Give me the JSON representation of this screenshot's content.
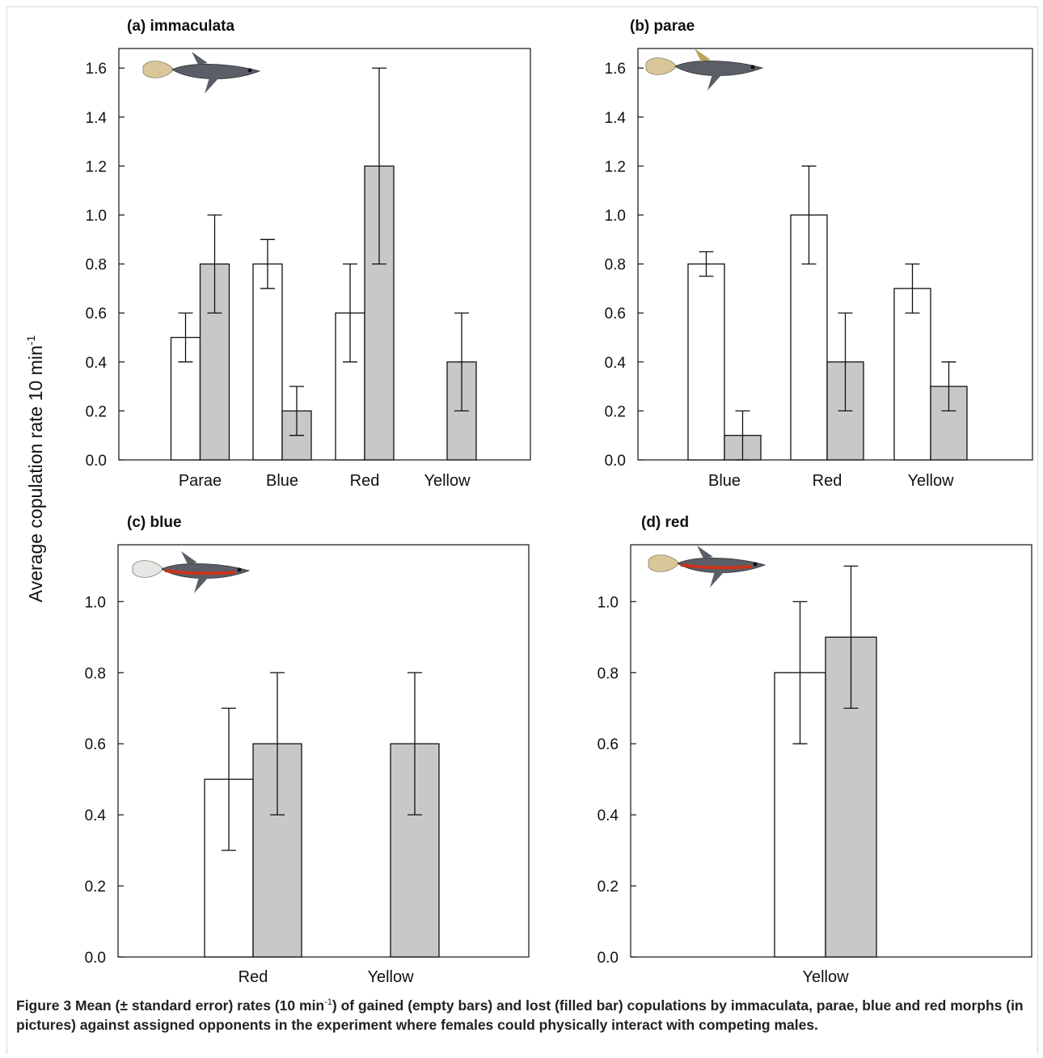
{
  "figure": {
    "ylabel": "Average copulation rate 10 min",
    "ylabel_sup": "-1",
    "caption_lead": "Figure 3",
    "caption_body_1": "Mean (± standard error) rates (10 min",
    "caption_sup": "-1",
    "caption_body_2": ") of gained (empty bars) and lost (filled bar) copulations by immaculata, parae, blue and red morphs (in pictures) against assigned opponents in the experiment where females could physically interact with competing males."
  },
  "colors": {
    "gained": "#ffffff",
    "lost": "#c8c8c8",
    "stroke": "#111111",
    "fish_body": "#5a5e66",
    "fish_tail": "#d9c79a",
    "red_stripe": "#c8341c"
  },
  "chart_data": [
    {
      "type": "bar",
      "panel": "(a) immaculata",
      "categories": [
        "Parae",
        "Blue",
        "Red",
        "Yellow"
      ],
      "ylim": [
        0,
        1.6
      ],
      "yticks": [
        "0.0",
        "0.2",
        "0.4",
        "0.6",
        "0.8",
        "1.0",
        "1.2",
        "1.4",
        "1.6"
      ],
      "series": [
        {
          "values": [
            0.5,
            0.8,
            0.6,
            null
          ],
          "errors": [
            0.1,
            0.1,
            0.2,
            null
          ],
          "fill": "empty"
        },
        {
          "values": [
            0.8,
            0.2,
            1.2,
            0.4
          ],
          "errors": [
            0.2,
            0.1,
            0.4,
            0.2
          ],
          "fill": "filled"
        }
      ],
      "fish": "immaculata-fish-icon"
    },
    {
      "type": "bar",
      "panel": "(b) parae",
      "categories": [
        "Blue",
        "Red",
        "Yellow"
      ],
      "ylim": [
        0,
        1.6
      ],
      "yticks": [
        "0.0",
        "0.2",
        "0.4",
        "0.6",
        "0.8",
        "1.0",
        "1.2",
        "1.4",
        "1.6"
      ],
      "series": [
        {
          "values": [
            0.8,
            1.0,
            0.7
          ],
          "errors": [
            0.05,
            0.2,
            0.1
          ],
          "fill": "empty"
        },
        {
          "values": [
            0.1,
            0.4,
            0.3
          ],
          "errors": [
            0.1,
            0.2,
            0.1
          ],
          "fill": "filled"
        }
      ],
      "fish": "parae-fish-icon"
    },
    {
      "type": "bar",
      "panel": "(c) blue",
      "categories": [
        "Red",
        "Yellow"
      ],
      "ylim": [
        0,
        1.0
      ],
      "yticks": [
        "0.0",
        "0.2",
        "0.4",
        "0.6",
        "0.8",
        "1.0"
      ],
      "series": [
        {
          "values": [
            0.5,
            null
          ],
          "errors": [
            0.2,
            null
          ],
          "fill": "empty"
        },
        {
          "values": [
            0.6,
            0.6
          ],
          "errors": [
            0.2,
            0.2
          ],
          "fill": "filled"
        }
      ],
      "fish": "blue-fish-icon"
    },
    {
      "type": "bar",
      "panel": "(d) red",
      "categories": [
        "Yellow"
      ],
      "ylim": [
        0,
        1.0
      ],
      "yticks": [
        "0.0",
        "0.2",
        "0.4",
        "0.6",
        "0.8",
        "1.0"
      ],
      "series": [
        {
          "values": [
            0.8
          ],
          "errors": [
            0.2
          ],
          "fill": "empty"
        },
        {
          "values": [
            0.9
          ],
          "errors": [
            0.2
          ],
          "fill": "filled"
        }
      ],
      "fish": "red-fish-icon"
    }
  ]
}
